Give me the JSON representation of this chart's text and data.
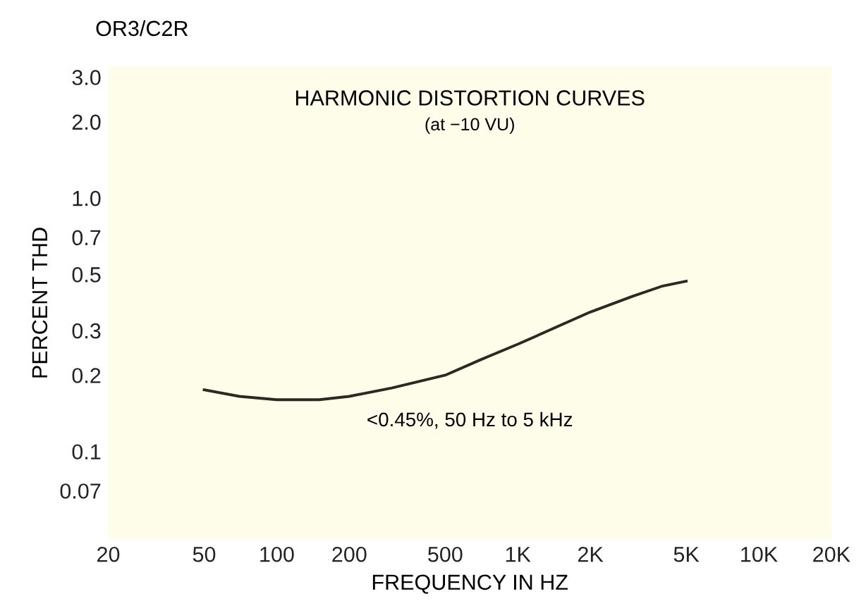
{
  "chart_data": {
    "type": "line",
    "title": "HARMONIC DISTORTION CURVES",
    "subtitle": "(at −10 VU)",
    "xlabel": "FREQUENCY IN HZ",
    "ylabel": "PERCENT THD",
    "annotations": [
      "OR3/C2R",
      "<0.45%, 50 Hz to 5 kHz"
    ],
    "log": "xy",
    "grid": false,
    "legend": false,
    "marker": "none",
    "line_style": "solid",
    "series": [
      {
        "color": "#2a2a22",
        "x": [
          50,
          70,
          100,
          150,
          200,
          300,
          500,
          700,
          1000,
          2000,
          3000,
          4000,
          5000
        ],
        "values": [
          0.175,
          0.165,
          0.16,
          0.16,
          0.165,
          0.178,
          0.2,
          0.23,
          0.265,
          0.355,
          0.41,
          0.45,
          0.47
        ]
      }
    ],
    "xlim": [
      20,
      20000
    ],
    "ylim": [
      0.045,
      3.3
    ],
    "xticks": [
      20,
      50,
      100,
      200,
      500,
      {
        "value": 1000,
        "label": "1K"
      },
      {
        "value": 2000,
        "label": "2K"
      },
      {
        "value": 5000,
        "label": "5K"
      },
      {
        "value": 10000,
        "label": "10K"
      },
      {
        "value": 20000,
        "label": "20K"
      }
    ],
    "yticks": [
      {
        "value": 0.07,
        "label": "0.07"
      },
      0.1,
      0.2,
      0.3,
      0.5,
      0.7,
      {
        "value": 1.0,
        "label": "1.0"
      },
      {
        "value": 2.0,
        "label": "2.0"
      },
      {
        "value": 3.0,
        "label": "3.0"
      }
    ]
  }
}
